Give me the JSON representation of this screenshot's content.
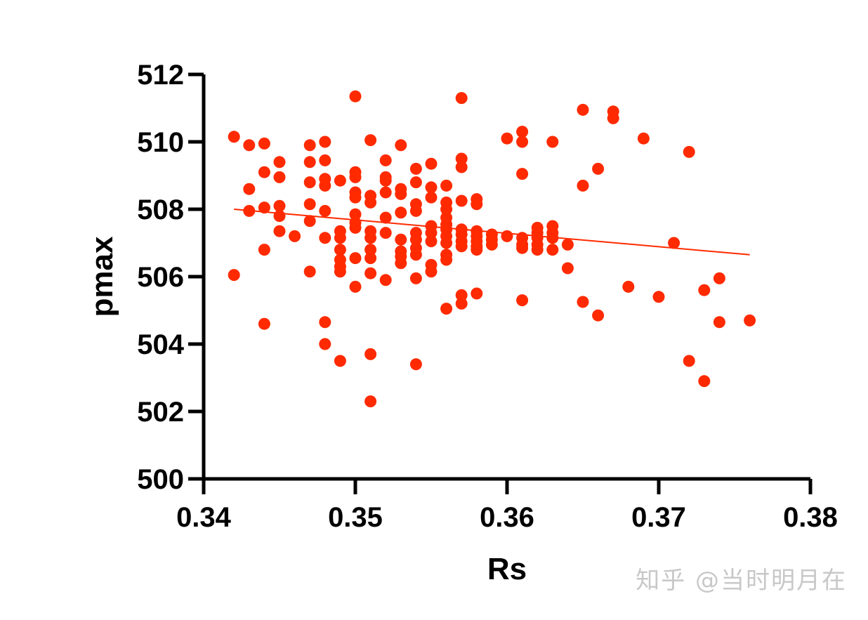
{
  "watermark": "知乎 @当时明月在",
  "chart_data": {
    "type": "scatter",
    "title": "",
    "xlabel": "Rs",
    "ylabel": "pmax",
    "xlim": [
      0.34,
      0.38
    ],
    "ylim": [
      500,
      512
    ],
    "x_ticks": [
      "0.34",
      "0.35",
      "0.36",
      "0.37",
      "0.38"
    ],
    "y_ticks": [
      "500",
      "502",
      "504",
      "506",
      "508",
      "510",
      "512"
    ],
    "grid": false,
    "legend": "none",
    "marker_color": "#ff2a00",
    "trendline": {
      "x": [
        0.342,
        0.376
      ],
      "y": [
        508.0,
        506.65
      ],
      "color": "#ff2a00"
    },
    "points": [
      [
        0.342,
        510.15
      ],
      [
        0.342,
        506.05
      ],
      [
        0.343,
        509.9
      ],
      [
        0.343,
        508.6
      ],
      [
        0.343,
        507.95
      ],
      [
        0.344,
        509.95
      ],
      [
        0.344,
        509.1
      ],
      [
        0.344,
        508.05
      ],
      [
        0.344,
        506.8
      ],
      [
        0.344,
        504.6
      ],
      [
        0.345,
        509.4
      ],
      [
        0.345,
        508.95
      ],
      [
        0.345,
        508.1
      ],
      [
        0.345,
        507.8
      ],
      [
        0.345,
        507.35
      ],
      [
        0.346,
        507.2
      ],
      [
        0.347,
        509.9
      ],
      [
        0.347,
        509.4
      ],
      [
        0.347,
        508.8
      ],
      [
        0.347,
        508.15
      ],
      [
        0.347,
        507.65
      ],
      [
        0.347,
        506.15
      ],
      [
        0.348,
        510.0
      ],
      [
        0.348,
        509.45
      ],
      [
        0.348,
        508.9
      ],
      [
        0.348,
        508.7
      ],
      [
        0.348,
        507.95
      ],
      [
        0.348,
        507.15
      ],
      [
        0.348,
        504.65
      ],
      [
        0.348,
        504.0
      ],
      [
        0.349,
        508.85
      ],
      [
        0.349,
        507.35
      ],
      [
        0.349,
        507.15
      ],
      [
        0.349,
        506.8
      ],
      [
        0.349,
        506.5
      ],
      [
        0.349,
        506.3
      ],
      [
        0.349,
        506.15
      ],
      [
        0.349,
        503.5
      ],
      [
        0.35,
        511.35
      ],
      [
        0.35,
        509.1
      ],
      [
        0.35,
        508.95
      ],
      [
        0.35,
        508.5
      ],
      [
        0.35,
        508.35
      ],
      [
        0.35,
        507.85
      ],
      [
        0.35,
        507.6
      ],
      [
        0.35,
        507.45
      ],
      [
        0.35,
        506.55
      ],
      [
        0.35,
        505.7
      ],
      [
        0.351,
        510.05
      ],
      [
        0.351,
        508.4
      ],
      [
        0.351,
        508.2
      ],
      [
        0.351,
        507.35
      ],
      [
        0.351,
        507.15
      ],
      [
        0.351,
        506.8
      ],
      [
        0.351,
        506.55
      ],
      [
        0.351,
        506.1
      ],
      [
        0.351,
        503.7
      ],
      [
        0.351,
        502.3
      ],
      [
        0.352,
        509.45
      ],
      [
        0.352,
        508.95
      ],
      [
        0.352,
        508.85
      ],
      [
        0.352,
        508.5
      ],
      [
        0.352,
        507.75
      ],
      [
        0.352,
        507.3
      ],
      [
        0.352,
        505.9
      ],
      [
        0.353,
        509.9
      ],
      [
        0.353,
        508.6
      ],
      [
        0.353,
        508.45
      ],
      [
        0.353,
        507.9
      ],
      [
        0.353,
        507.1
      ],
      [
        0.353,
        506.75
      ],
      [
        0.353,
        506.6
      ],
      [
        0.353,
        506.4
      ],
      [
        0.354,
        509.2
      ],
      [
        0.354,
        508.8
      ],
      [
        0.354,
        508.15
      ],
      [
        0.354,
        507.95
      ],
      [
        0.354,
        507.3
      ],
      [
        0.354,
        507.1
      ],
      [
        0.354,
        506.85
      ],
      [
        0.354,
        506.65
      ],
      [
        0.354,
        505.95
      ],
      [
        0.354,
        503.4
      ],
      [
        0.355,
        509.35
      ],
      [
        0.355,
        508.65
      ],
      [
        0.355,
        508.35
      ],
      [
        0.355,
        507.5
      ],
      [
        0.355,
        507.3
      ],
      [
        0.355,
        507.05
      ],
      [
        0.355,
        506.35
      ],
      [
        0.355,
        506.15
      ],
      [
        0.356,
        508.7
      ],
      [
        0.356,
        508.2
      ],
      [
        0.356,
        508.0
      ],
      [
        0.356,
        507.75
      ],
      [
        0.356,
        507.55
      ],
      [
        0.356,
        507.4
      ],
      [
        0.356,
        507.2
      ],
      [
        0.356,
        507.0
      ],
      [
        0.356,
        506.65
      ],
      [
        0.356,
        506.5
      ],
      [
        0.356,
        505.05
      ],
      [
        0.357,
        511.3
      ],
      [
        0.357,
        509.5
      ],
      [
        0.357,
        509.25
      ],
      [
        0.357,
        508.25
      ],
      [
        0.357,
        507.4
      ],
      [
        0.357,
        507.25
      ],
      [
        0.357,
        507.05
      ],
      [
        0.357,
        506.9
      ],
      [
        0.357,
        505.45
      ],
      [
        0.357,
        505.2
      ],
      [
        0.358,
        508.3
      ],
      [
        0.358,
        508.15
      ],
      [
        0.358,
        507.35
      ],
      [
        0.358,
        507.2
      ],
      [
        0.358,
        507.05
      ],
      [
        0.358,
        506.9
      ],
      [
        0.358,
        506.8
      ],
      [
        0.358,
        505.5
      ],
      [
        0.359,
        507.25
      ],
      [
        0.359,
        507.1
      ],
      [
        0.359,
        506.95
      ],
      [
        0.36,
        510.1
      ],
      [
        0.36,
        507.2
      ],
      [
        0.361,
        510.3
      ],
      [
        0.361,
        510.0
      ],
      [
        0.361,
        509.05
      ],
      [
        0.361,
        507.15
      ],
      [
        0.361,
        506.95
      ],
      [
        0.361,
        506.85
      ],
      [
        0.361,
        505.3
      ],
      [
        0.362,
        507.45
      ],
      [
        0.362,
        507.3
      ],
      [
        0.362,
        507.15
      ],
      [
        0.362,
        506.95
      ],
      [
        0.362,
        506.8
      ],
      [
        0.363,
        510.0
      ],
      [
        0.363,
        507.5
      ],
      [
        0.363,
        507.3
      ],
      [
        0.363,
        507.15
      ],
      [
        0.363,
        506.8
      ],
      [
        0.364,
        506.95
      ],
      [
        0.364,
        506.25
      ],
      [
        0.365,
        510.95
      ],
      [
        0.365,
        508.7
      ],
      [
        0.365,
        505.25
      ],
      [
        0.366,
        509.2
      ],
      [
        0.366,
        504.85
      ],
      [
        0.367,
        510.9
      ],
      [
        0.367,
        510.7
      ],
      [
        0.368,
        505.7
      ],
      [
        0.369,
        510.1
      ],
      [
        0.37,
        505.4
      ],
      [
        0.371,
        507.0
      ],
      [
        0.372,
        509.7
      ],
      [
        0.372,
        503.5
      ],
      [
        0.373,
        505.6
      ],
      [
        0.373,
        502.9
      ],
      [
        0.374,
        505.95
      ],
      [
        0.374,
        504.65
      ],
      [
        0.376,
        504.7
      ]
    ]
  }
}
